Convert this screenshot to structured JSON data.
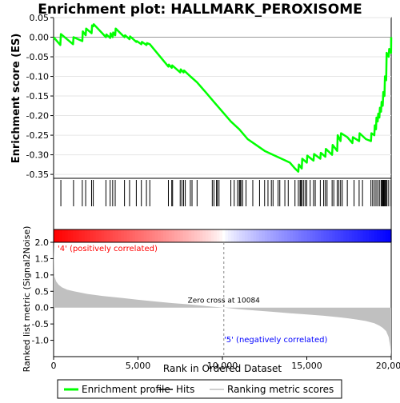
{
  "chart_data": {
    "type": "line",
    "title": "Enrichment plot: HALLMARK_PEROXISOME",
    "top_panel": {
      "ylabel": "Enrichment score (ES)",
      "ylim": [
        -0.36,
        0.05
      ],
      "yticks": [
        "0.05",
        "0.00",
        "-0.05",
        "-0.10",
        "-0.15",
        "-0.20",
        "-0.25",
        "-0.30",
        "-0.35"
      ],
      "yticks_values": [
        0.05,
        0.0,
        -0.05,
        -0.1,
        -0.15,
        -0.2,
        -0.25,
        -0.3,
        -0.35
      ],
      "series": [
        {
          "name": "Enrichment profile",
          "color": "#00ff00",
          "x": [
            0,
            400,
            430,
            1150,
            1180,
            1700,
            1730,
            1900,
            1930,
            2250,
            2280,
            2350,
            2380,
            3100,
            3130,
            3350,
            3380,
            3500,
            3530,
            3650,
            3680,
            4200,
            4230,
            4500,
            4530,
            4900,
            4930,
            5200,
            5230,
            5500,
            5530,
            5700,
            6800,
            6830,
            7000,
            7030,
            7500,
            7530,
            7700,
            7730,
            8100,
            8500,
            9000,
            9500,
            10000,
            10500,
            11000,
            11500,
            12000,
            12500,
            13000,
            13500,
            14000,
            14300,
            14500,
            14530,
            14700,
            14730,
            15000,
            15030,
            15400,
            15430,
            15800,
            15830,
            16100,
            16130,
            16500,
            16530,
            16800,
            16830,
            17000,
            17030,
            17400,
            17700,
            17730,
            18100,
            18130,
            18500,
            18800,
            18830,
            19000,
            19030,
            19100,
            19130,
            19200,
            19230,
            19300,
            19330,
            19400,
            19430,
            19500,
            19530,
            19600,
            19630,
            19700,
            19730,
            19850,
            19880,
            19990,
            20000
          ],
          "y": [
            0.0,
            -0.02,
            0.008,
            -0.018,
            0.0,
            -0.01,
            0.015,
            0.005,
            0.022,
            0.01,
            0.03,
            0.028,
            0.033,
            0.0,
            0.007,
            -0.002,
            0.01,
            0.0,
            0.012,
            0.005,
            0.022,
            0.0,
            0.005,
            -0.005,
            0.002,
            -0.012,
            -0.01,
            -0.018,
            -0.012,
            -0.02,
            -0.015,
            -0.018,
            -0.075,
            -0.07,
            -0.078,
            -0.072,
            -0.09,
            -0.082,
            -0.09,
            -0.085,
            -0.1,
            -0.115,
            -0.14,
            -0.165,
            -0.19,
            -0.215,
            -0.235,
            -0.26,
            -0.275,
            -0.29,
            -0.3,
            -0.31,
            -0.32,
            -0.335,
            -0.343,
            -0.325,
            -0.335,
            -0.31,
            -0.32,
            -0.302,
            -0.315,
            -0.298,
            -0.31,
            -0.295,
            -0.305,
            -0.285,
            -0.3,
            -0.275,
            -0.29,
            -0.25,
            -0.265,
            -0.245,
            -0.255,
            -0.27,
            -0.255,
            -0.265,
            -0.245,
            -0.26,
            -0.265,
            -0.245,
            -0.25,
            -0.225,
            -0.235,
            -0.205,
            -0.215,
            -0.195,
            -0.205,
            -0.18,
            -0.19,
            -0.165,
            -0.175,
            -0.14,
            -0.15,
            -0.1,
            -0.11,
            -0.04,
            -0.05,
            -0.03,
            -0.04,
            0.0
          ]
        }
      ]
    },
    "hits": {
      "name": "Hits",
      "color": "#000000",
      "x": [
        430,
        1180,
        1700,
        1900,
        2250,
        2350,
        3100,
        3350,
        3500,
        3650,
        4200,
        4500,
        4900,
        5200,
        5500,
        5700,
        6800,
        7000,
        7050,
        7500,
        7600,
        7700,
        7800,
        8100,
        8200,
        8500,
        9400,
        9500,
        9650,
        9700,
        9800,
        10500,
        10700,
        10900,
        11000,
        11050,
        11100,
        11200,
        11400,
        11800,
        12200,
        12500,
        12700,
        12900,
        13000,
        13300,
        13400,
        13700,
        13900,
        14300,
        14500,
        14600,
        14650,
        14700,
        14800,
        14900,
        15000,
        15200,
        15400,
        15500,
        15800,
        16000,
        16100,
        16200,
        16500,
        16600,
        16800,
        16900,
        17000,
        17100,
        17400,
        17800,
        18100,
        18300,
        18800,
        18900,
        19000,
        19100,
        19200,
        19300,
        19400,
        19450,
        19500,
        19550,
        19600,
        19650,
        19700,
        19750,
        19850,
        19990
      ]
    },
    "ranking_bar": {
      "positive_color": "#ff0000",
      "neutral_color": "#ffffff",
      "negative_color": "#0000ff",
      "label_positive": "'4' (positively correlated)",
      "label_negative": "'5' (negatively correlated)",
      "label_positive_color": "#ff0000",
      "label_negative_color": "#0000ff"
    },
    "bottom_panel": {
      "ylabel": "Ranked list metric (Signal2Noise)",
      "xlabel": "Rank in Ordered Dataset",
      "ylim": [
        -1.5,
        2.0
      ],
      "yticks": [
        "2.0",
        "1.5",
        "1.0",
        "0.5",
        "0.0",
        "-0.5",
        "-1.0"
      ],
      "yticks_values": [
        2.0,
        1.5,
        1.0,
        0.5,
        0.0,
        -0.5,
        -1.0
      ],
      "fill_color": "#c0c0c0",
      "series": [
        {
          "name": "Ranking metric scores",
          "x": [
            0,
            50,
            150,
            300,
            500,
            800,
            1200,
            2000,
            3000,
            4000,
            5000,
            6000,
            7000,
            8000,
            9000,
            10084,
            11000,
            12000,
            13000,
            14000,
            15000,
            16000,
            17000,
            17500,
            18000,
            18500,
            19000,
            19300,
            19500,
            19700,
            19850,
            19950,
            20000
          ],
          "y": [
            2.0,
            0.95,
            0.8,
            0.7,
            0.62,
            0.55,
            0.5,
            0.42,
            0.35,
            0.3,
            0.24,
            0.19,
            0.14,
            0.1,
            0.05,
            0.0,
            -0.05,
            -0.09,
            -0.13,
            -0.17,
            -0.21,
            -0.25,
            -0.3,
            -0.33,
            -0.37,
            -0.41,
            -0.48,
            -0.55,
            -0.62,
            -0.72,
            -0.9,
            -1.2,
            -1.5
          ]
        }
      ],
      "zero_cross_label": "Zero cross at 10084",
      "zero_cross_x": 10084
    },
    "xlim": [
      0,
      20000
    ],
    "xticks": [
      "0",
      "5,000",
      "10,000",
      "15,000",
      "20,000"
    ],
    "xticks_values": [
      0,
      5000,
      10000,
      15000,
      20000
    ],
    "legend": {
      "placement": "bottom",
      "entries": [
        {
          "label": "Enrichment profile",
          "color": "#00ff00"
        },
        {
          "label": "Hits",
          "color": "#000000"
        },
        {
          "label": "Ranking metric scores",
          "color": "#c0c0c0"
        }
      ]
    }
  }
}
